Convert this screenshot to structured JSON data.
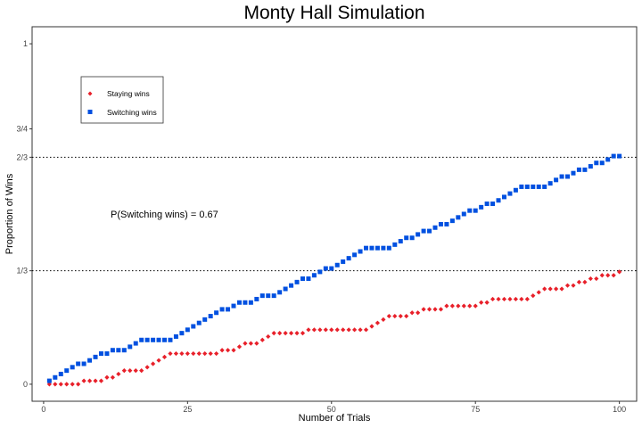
{
  "chart_data": {
    "type": "scatter",
    "title": "Monty Hall Simulation",
    "xlabel": "Number of Trials",
    "ylabel": "Proportion of Wins",
    "xlim": [
      -2,
      103
    ],
    "ylim": [
      -0.05,
      1.05
    ],
    "x_ticks": [
      0,
      25,
      50,
      75,
      100
    ],
    "x_tick_labels": [
      "0",
      "25",
      "50",
      "75",
      "100"
    ],
    "y_ticks": [
      0,
      0.3333,
      0.6667,
      0.75,
      1
    ],
    "y_tick_labels": [
      "0",
      "1/3",
      "2/3",
      "3/4",
      "1"
    ],
    "reference_lines": [
      0.3333,
      0.6667
    ],
    "annotation": "P(Switching wins) = 0.67",
    "grid": false,
    "legend_position": "top-left",
    "series": [
      {
        "name": "Staying wins",
        "color": "#e8202a",
        "marker": "diamond",
        "x": [
          1,
          2,
          3,
          4,
          5,
          6,
          7,
          8,
          9,
          10,
          11,
          12,
          13,
          14,
          15,
          16,
          17,
          18,
          19,
          20,
          21,
          22,
          23,
          24,
          25,
          26,
          27,
          28,
          29,
          30,
          31,
          32,
          33,
          34,
          35,
          36,
          37,
          38,
          39,
          40,
          41,
          42,
          43,
          44,
          45,
          46,
          47,
          48,
          49,
          50,
          51,
          52,
          53,
          54,
          55,
          56,
          57,
          58,
          59,
          60,
          61,
          62,
          63,
          64,
          65,
          66,
          67,
          68,
          69,
          70,
          71,
          72,
          73,
          74,
          75,
          76,
          77,
          78,
          79,
          80,
          81,
          82,
          83,
          84,
          85,
          86,
          87,
          88,
          89,
          90,
          91,
          92,
          93,
          94,
          95,
          96,
          97,
          98,
          99,
          100
        ],
        "y": [
          0,
          0,
          0,
          0,
          0,
          0,
          0.01,
          0.01,
          0.01,
          0.01,
          0.02,
          0.02,
          0.03,
          0.04,
          0.04,
          0.04,
          0.04,
          0.05,
          0.06,
          0.07,
          0.08,
          0.09,
          0.09,
          0.09,
          0.09,
          0.09,
          0.09,
          0.09,
          0.09,
          0.09,
          0.1,
          0.1,
          0.1,
          0.11,
          0.12,
          0.12,
          0.12,
          0.13,
          0.14,
          0.15,
          0.15,
          0.15,
          0.15,
          0.15,
          0.15,
          0.16,
          0.16,
          0.16,
          0.16,
          0.16,
          0.16,
          0.16,
          0.16,
          0.16,
          0.16,
          0.16,
          0.17,
          0.18,
          0.19,
          0.2,
          0.2,
          0.2,
          0.2,
          0.21,
          0.21,
          0.22,
          0.22,
          0.22,
          0.22,
          0.23,
          0.23,
          0.23,
          0.23,
          0.23,
          0.23,
          0.24,
          0.24,
          0.25,
          0.25,
          0.25,
          0.25,
          0.25,
          0.25,
          0.25,
          0.26,
          0.27,
          0.28,
          0.28,
          0.28,
          0.28,
          0.29,
          0.29,
          0.3,
          0.3,
          0.31,
          0.31,
          0.32,
          0.32,
          0.32,
          0.33
        ]
      },
      {
        "name": "Switching wins",
        "color": "#0050e0",
        "marker": "square",
        "x": [
          1,
          2,
          3,
          4,
          5,
          6,
          7,
          8,
          9,
          10,
          11,
          12,
          13,
          14,
          15,
          16,
          17,
          18,
          19,
          20,
          21,
          22,
          23,
          24,
          25,
          26,
          27,
          28,
          29,
          30,
          31,
          32,
          33,
          34,
          35,
          36,
          37,
          38,
          39,
          40,
          41,
          42,
          43,
          44,
          45,
          46,
          47,
          48,
          49,
          50,
          51,
          52,
          53,
          54,
          55,
          56,
          57,
          58,
          59,
          60,
          61,
          62,
          63,
          64,
          65,
          66,
          67,
          68,
          69,
          70,
          71,
          72,
          73,
          74,
          75,
          76,
          77,
          78,
          79,
          80,
          81,
          82,
          83,
          84,
          85,
          86,
          87,
          88,
          89,
          90,
          91,
          92,
          93,
          94,
          95,
          96,
          97,
          98,
          99,
          100
        ],
        "y": [
          0.01,
          0.02,
          0.03,
          0.04,
          0.05,
          0.06,
          0.06,
          0.07,
          0.08,
          0.09,
          0.09,
          0.1,
          0.1,
          0.1,
          0.11,
          0.12,
          0.13,
          0.13,
          0.13,
          0.13,
          0.13,
          0.13,
          0.14,
          0.15,
          0.16,
          0.17,
          0.18,
          0.19,
          0.2,
          0.21,
          0.22,
          0.22,
          0.23,
          0.24,
          0.24,
          0.24,
          0.25,
          0.26,
          0.26,
          0.26,
          0.27,
          0.28,
          0.29,
          0.3,
          0.31,
          0.31,
          0.32,
          0.33,
          0.34,
          0.34,
          0.35,
          0.36,
          0.37,
          0.38,
          0.39,
          0.4,
          0.4,
          0.4,
          0.4,
          0.4,
          0.41,
          0.42,
          0.43,
          0.43,
          0.44,
          0.45,
          0.45,
          0.46,
          0.47,
          0.47,
          0.48,
          0.49,
          0.5,
          0.51,
          0.51,
          0.52,
          0.53,
          0.53,
          0.54,
          0.55,
          0.56,
          0.57,
          0.58,
          0.58,
          0.58,
          0.58,
          0.58,
          0.59,
          0.6,
          0.61,
          0.61,
          0.62,
          0.63,
          0.63,
          0.64,
          0.65,
          0.65,
          0.66,
          0.67,
          0.67
        ]
      }
    ]
  }
}
